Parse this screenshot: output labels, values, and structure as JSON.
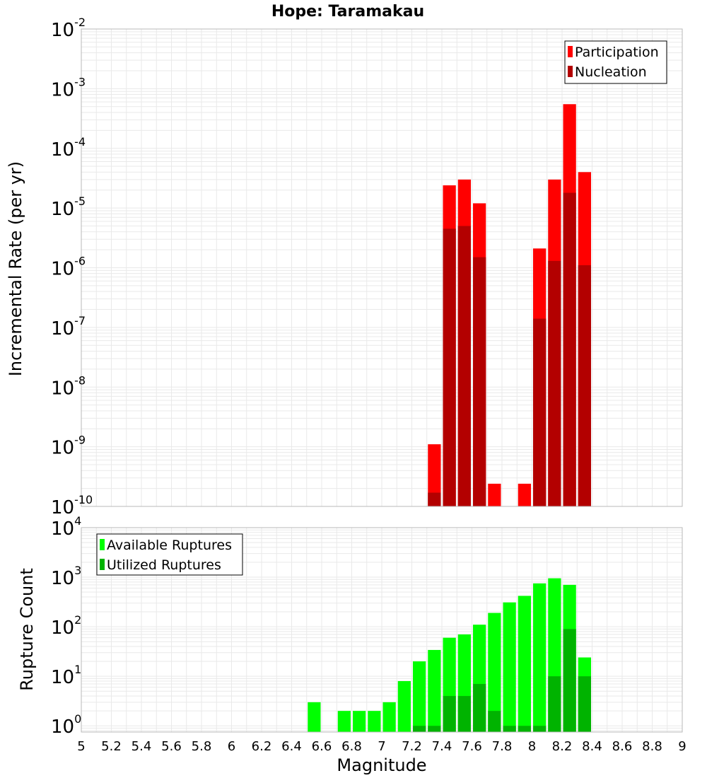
{
  "chart_data": [
    {
      "type": "bar",
      "title": "Hope: Taramakau",
      "ylabel": "Incremental Rate (per yr)",
      "xlabel": "",
      "log_y": true,
      "ylim": [
        1e-10,
        0.01
      ],
      "xlim": [
        5,
        9
      ],
      "grid": true,
      "legend_position": "top-right",
      "y_tick_exponents": [
        "-10",
        "-9",
        "-8",
        "-7",
        "-6",
        "-5",
        "-4",
        "-3",
        "-2"
      ],
      "y_tick_base": "10",
      "bin_width": 0.1,
      "x": [
        7.35,
        7.45,
        7.55,
        7.65,
        7.75,
        7.95,
        8.05,
        8.15,
        8.25,
        8.35
      ],
      "series": [
        {
          "name": "Participation",
          "color": "#ff0000",
          "values": [
            1.1e-09,
            2.4e-05,
            3e-05,
            1.2e-05,
            2.4e-10,
            2.4e-10,
            2.1e-06,
            3e-05,
            0.00055,
            4e-05
          ]
        },
        {
          "name": "Nucleation",
          "color": "#b30000",
          "values": [
            1.7e-10,
            4.5e-06,
            5e-06,
            1.5e-06,
            0,
            0,
            1.4e-07,
            1.3e-06,
            1.8e-05,
            1.1e-06
          ]
        }
      ]
    },
    {
      "type": "bar",
      "title": "",
      "ylabel": "Rupture Count",
      "xlabel": "Magnitude",
      "log_y": true,
      "ylim": [
        0.75,
        10000
      ],
      "xlim": [
        5,
        9
      ],
      "grid": true,
      "legend_position": "top-left",
      "y_tick_exponents": [
        "0",
        "1",
        "2",
        "3",
        "4"
      ],
      "y_tick_base": "10",
      "x_ticks": [
        "5",
        "5.2",
        "5.4",
        "5.6",
        "5.8",
        "6",
        "6.2",
        "6.4",
        "6.6",
        "6.8",
        "7",
        "7.2",
        "7.4",
        "7.6",
        "7.8",
        "8",
        "8.2",
        "8.4",
        "8.6",
        "8.8",
        "9"
      ],
      "bin_width": 0.1,
      "x": [
        6.55,
        6.75,
        6.85,
        6.95,
        7.05,
        7.15,
        7.25,
        7.35,
        7.45,
        7.55,
        7.65,
        7.75,
        7.85,
        7.95,
        8.05,
        8.15,
        8.25,
        8.35
      ],
      "series": [
        {
          "name": "Available Ruptures",
          "color": "#00ff00",
          "values": [
            3,
            2,
            2,
            2,
            3,
            8,
            20,
            34,
            60,
            70,
            110,
            190,
            310,
            420,
            750,
            950,
            700,
            24
          ]
        },
        {
          "name": "Utilized Ruptures",
          "color": "#00b300",
          "values": [
            0,
            0,
            0,
            0,
            0,
            0,
            1,
            1,
            4,
            4,
            7,
            2,
            1,
            1,
            1,
            10,
            90,
            10
          ]
        }
      ]
    }
  ]
}
